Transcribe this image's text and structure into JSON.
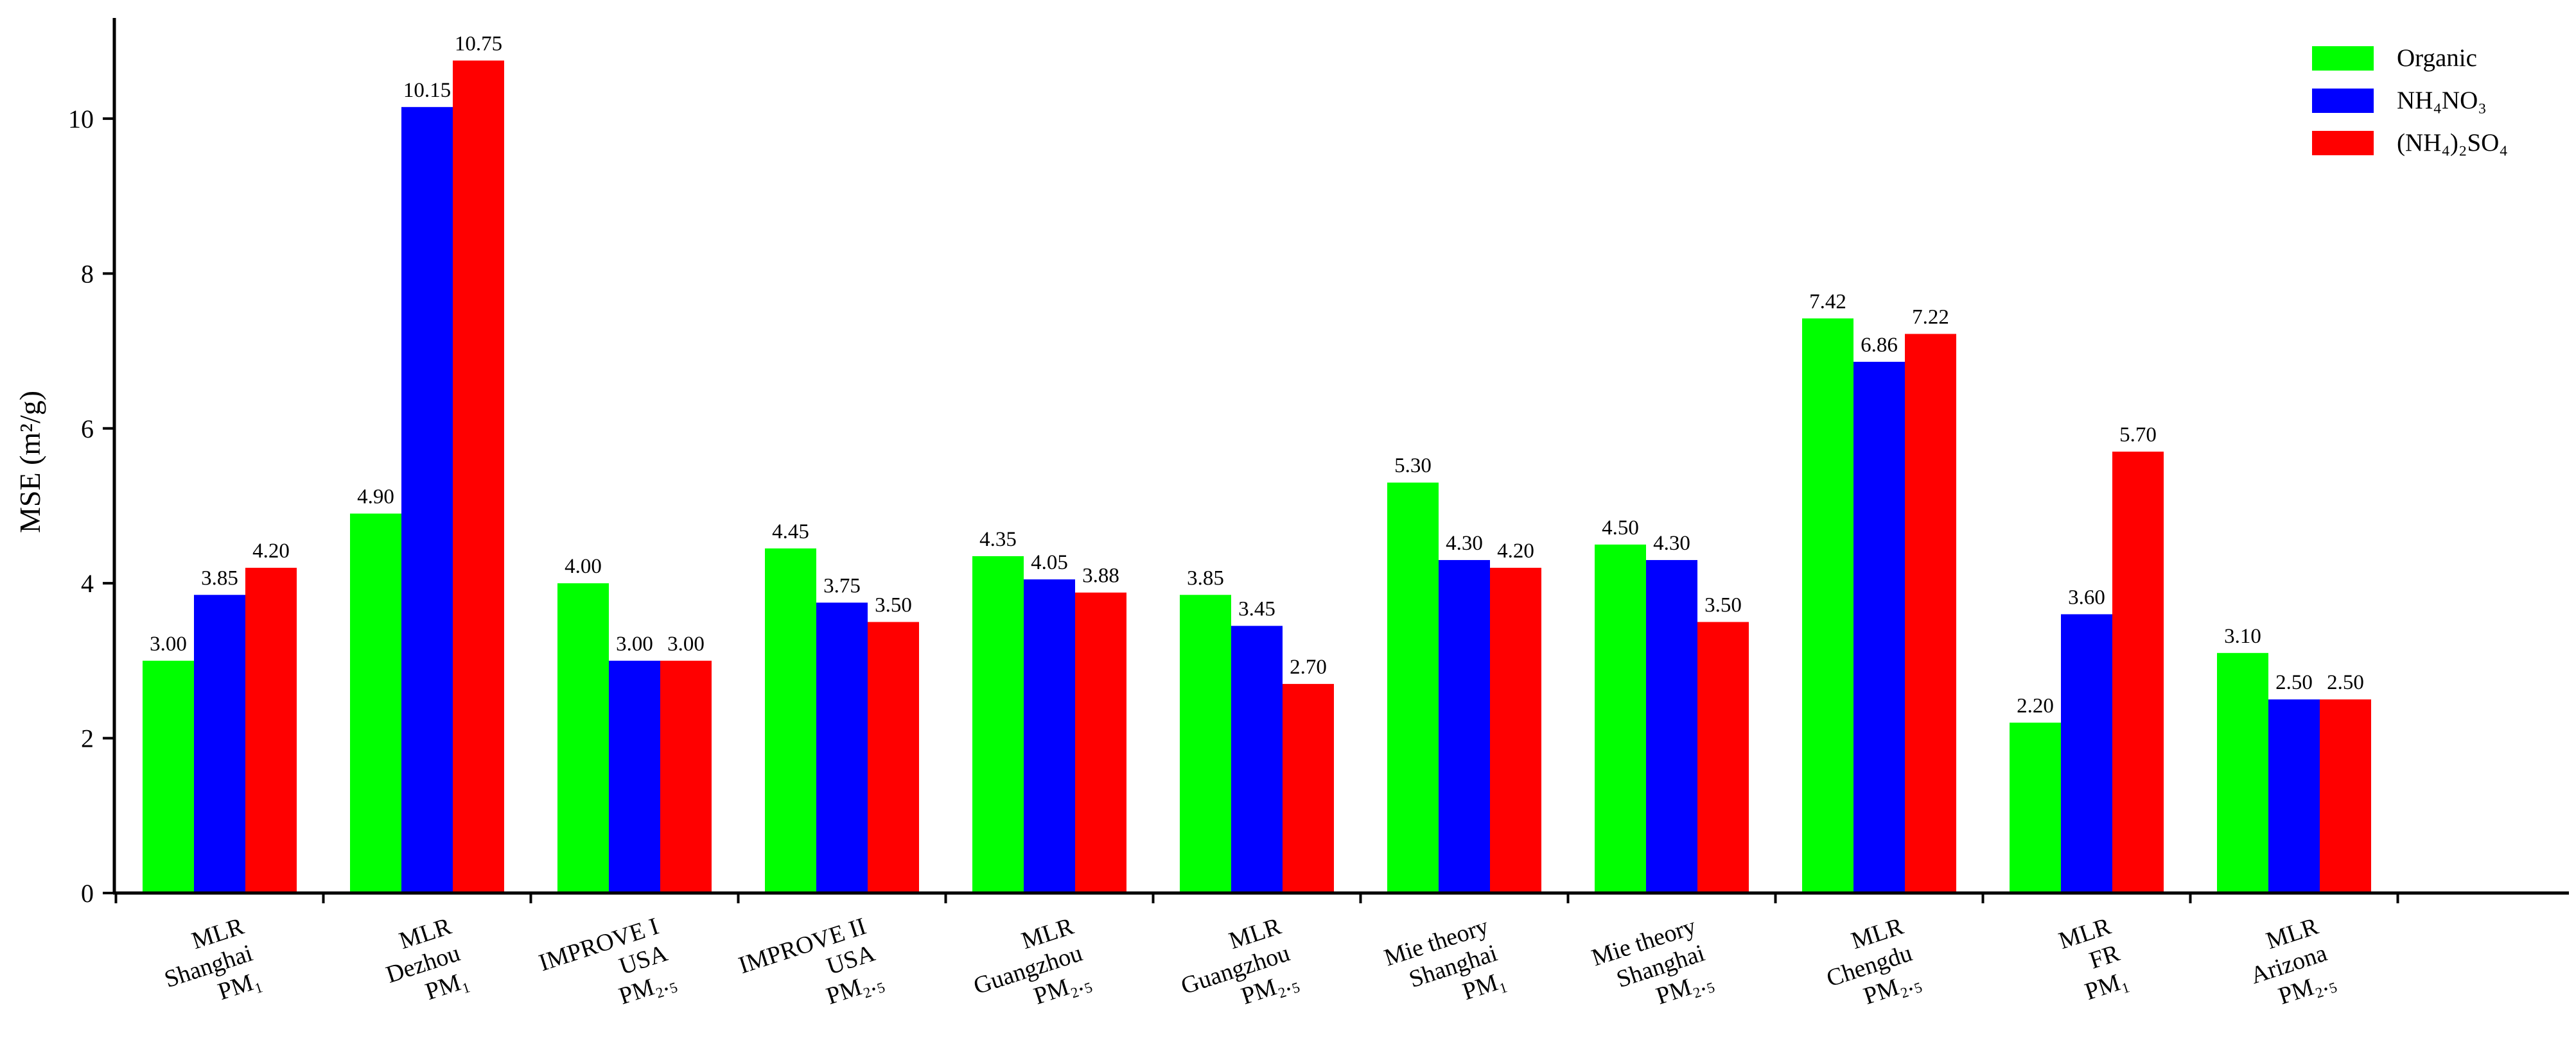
{
  "chart_data": {
    "type": "bar",
    "ylabel": "MSE (m²/g)",
    "ylim": [
      0,
      11.3
    ],
    "yticks": [
      0,
      2,
      4,
      6,
      8,
      10
    ],
    "grid": false,
    "legend_position": "top-right",
    "categories": [
      [
        "MLR",
        "Shanghai",
        "PM₁"
      ],
      [
        "MLR",
        "Dezhou",
        "PM₁"
      ],
      [
        "IMPROVE I",
        "USA",
        "PM₂.₅"
      ],
      [
        "IMPROVE II",
        "USA",
        "PM₂.₅"
      ],
      [
        "MLR",
        "Guangzhou",
        "PM₂.₅"
      ],
      [
        "MLR",
        "Guangzhou",
        "PM₂.₅"
      ],
      [
        "Mie theory",
        "Shanghai",
        "PM₁"
      ],
      [
        "Mie theory",
        "Shanghai",
        "PM₂.₅"
      ],
      [
        "MLR",
        "Chengdu",
        "PM₂.₅"
      ],
      [
        "MLR",
        "FR",
        "PM₁"
      ],
      [
        "MLR",
        "Arizona",
        "PM₂.₅"
      ]
    ],
    "series": [
      {
        "name": "Organic",
        "color": "#00ff00",
        "values": [
          3.0,
          4.9,
          4.0,
          4.45,
          4.35,
          3.85,
          5.3,
          4.5,
          7.42,
          2.2,
          3.1
        ],
        "labels": [
          "3.00",
          "4.90",
          "4.00",
          "4.45",
          "4.35",
          "3.85",
          "5.30",
          "4.50",
          "7.42",
          "2.20",
          "3.10"
        ]
      },
      {
        "name": "NH₄NO₃",
        "color": "#0000ff",
        "values": [
          3.85,
          10.15,
          3.0,
          3.75,
          4.05,
          3.45,
          4.3,
          4.3,
          6.86,
          3.6,
          2.5
        ],
        "labels": [
          "3.85",
          "10.15",
          "3.00",
          "3.75",
          "4.05",
          "3.45",
          "4.30",
          "4.30",
          "6.86",
          "3.60",
          "2.50"
        ]
      },
      {
        "name": "(NH₄)₂SO₄",
        "color": "#ff0000",
        "values": [
          4.2,
          10.75,
          3.0,
          3.5,
          3.88,
          2.7,
          4.2,
          3.5,
          7.22,
          5.7,
          2.5
        ],
        "labels": [
          "4.20",
          "10.75",
          "3.00",
          "3.50",
          "3.88",
          "2.70",
          "4.20",
          "3.50",
          "7.22",
          "5.70",
          "2.50"
        ]
      }
    ]
  }
}
